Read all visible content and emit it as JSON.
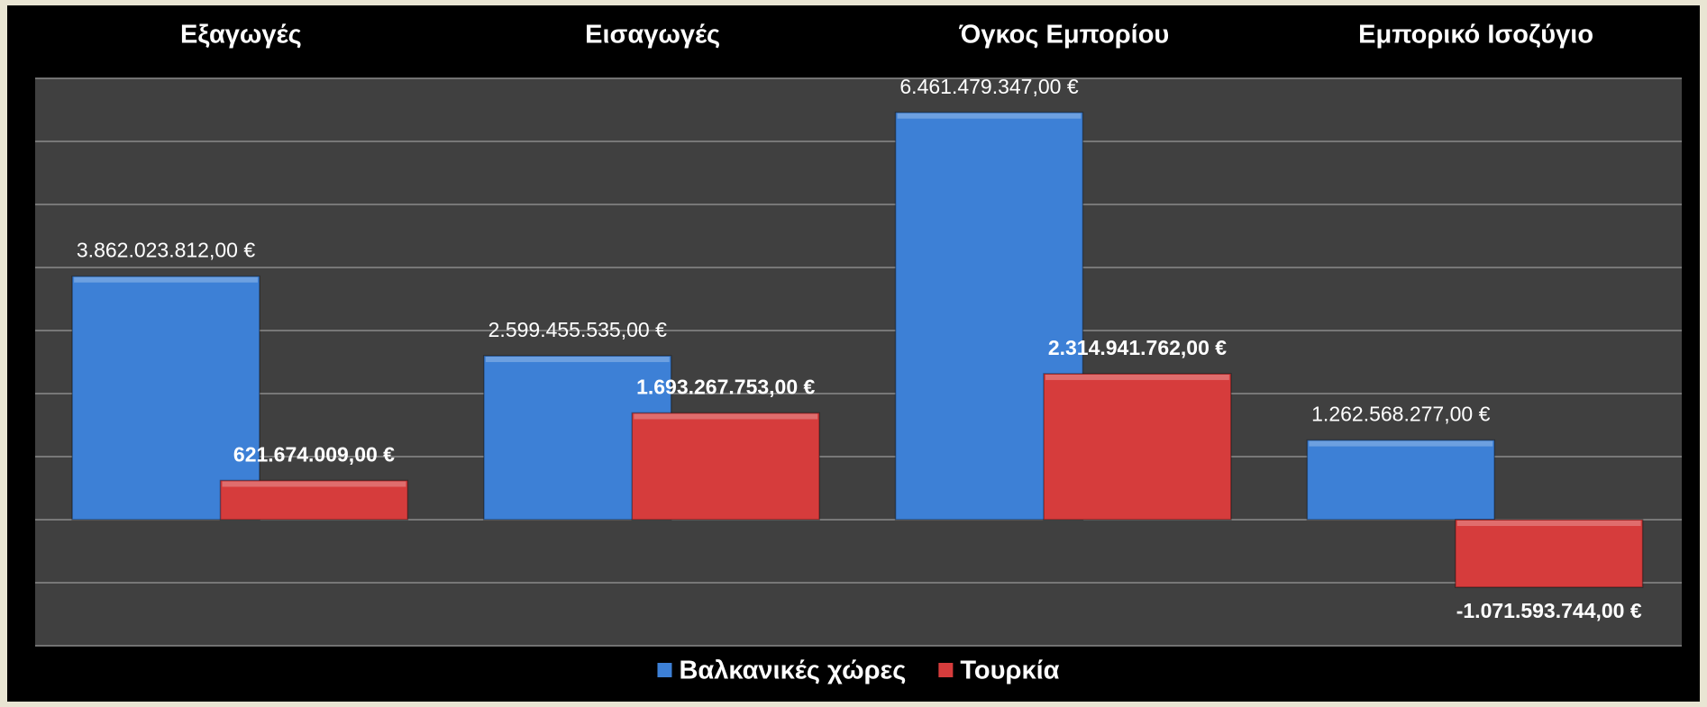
{
  "chart_data": {
    "type": "bar",
    "categories": [
      "Εξαγωγές",
      "Εισαγωγές",
      "Όγκος Εμπορίου",
      "Εμπορικό Ισοζύγιο"
    ],
    "series": [
      {
        "name": "Βαλκανικές χώρες",
        "color": "#3d80d6",
        "values": [
          3862023812,
          2599455535,
          6461479347,
          1262568277
        ],
        "value_labels": [
          "3.862.023.812,00 €",
          "2.599.455.535,00 €",
          "6.461.479.347,00 €",
          "1.262.568.277,00 €"
        ]
      },
      {
        "name": "Τουρκία",
        "color": "#d63c3c",
        "values": [
          621674009,
          1693267753,
          2314941762,
          -1071593744
        ],
        "value_labels": [
          "621.674.009,00 €",
          "1.693.267.753,00 €",
          "2.314.941.762,00 €",
          "-1.071.593.744,00 €"
        ]
      }
    ],
    "ylim": [
      -2000000000,
      7000000000
    ],
    "yticks": [
      -2000000000,
      -1000000000,
      0,
      1000000000,
      2000000000,
      3000000000,
      4000000000,
      5000000000,
      6000000000,
      7000000000
    ],
    "grid": true,
    "legend": "bottom"
  }
}
